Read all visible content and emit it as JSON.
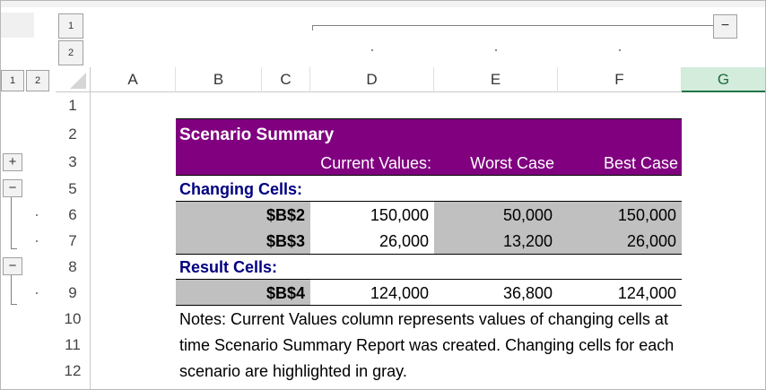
{
  "column_outline": {
    "levels": [
      "1",
      "2"
    ]
  },
  "row_outline": {
    "levels": [
      "1",
      "2"
    ]
  },
  "column_headers": [
    "A",
    "B",
    "C",
    "D",
    "E",
    "F",
    "G"
  ],
  "row_headers": [
    "1",
    "2",
    "3",
    "5",
    "6",
    "7",
    "8",
    "9",
    "10",
    "11",
    "12"
  ],
  "summary": {
    "title": "Scenario Summary",
    "headers": [
      "Current Values:",
      "Worst Case",
      "Best Case"
    ],
    "changing_label": "Changing Cells:",
    "changing_rows": [
      {
        "cell": "$B$2",
        "values": [
          "150,000",
          "50,000",
          "150,000"
        ]
      },
      {
        "cell": "$B$3",
        "values": [
          "26,000",
          "13,200",
          "26,000"
        ]
      }
    ],
    "result_label": "Result Cells:",
    "result_rows": [
      {
        "cell": "$B$4",
        "values": [
          "124,000",
          "36,800",
          "124,000"
        ]
      }
    ],
    "notes": [
      "Notes:  Current Values column represents values of changing cells at",
      "time Scenario Summary Report was created.  Changing cells for each",
      "scenario are highlighted in gray."
    ]
  }
}
